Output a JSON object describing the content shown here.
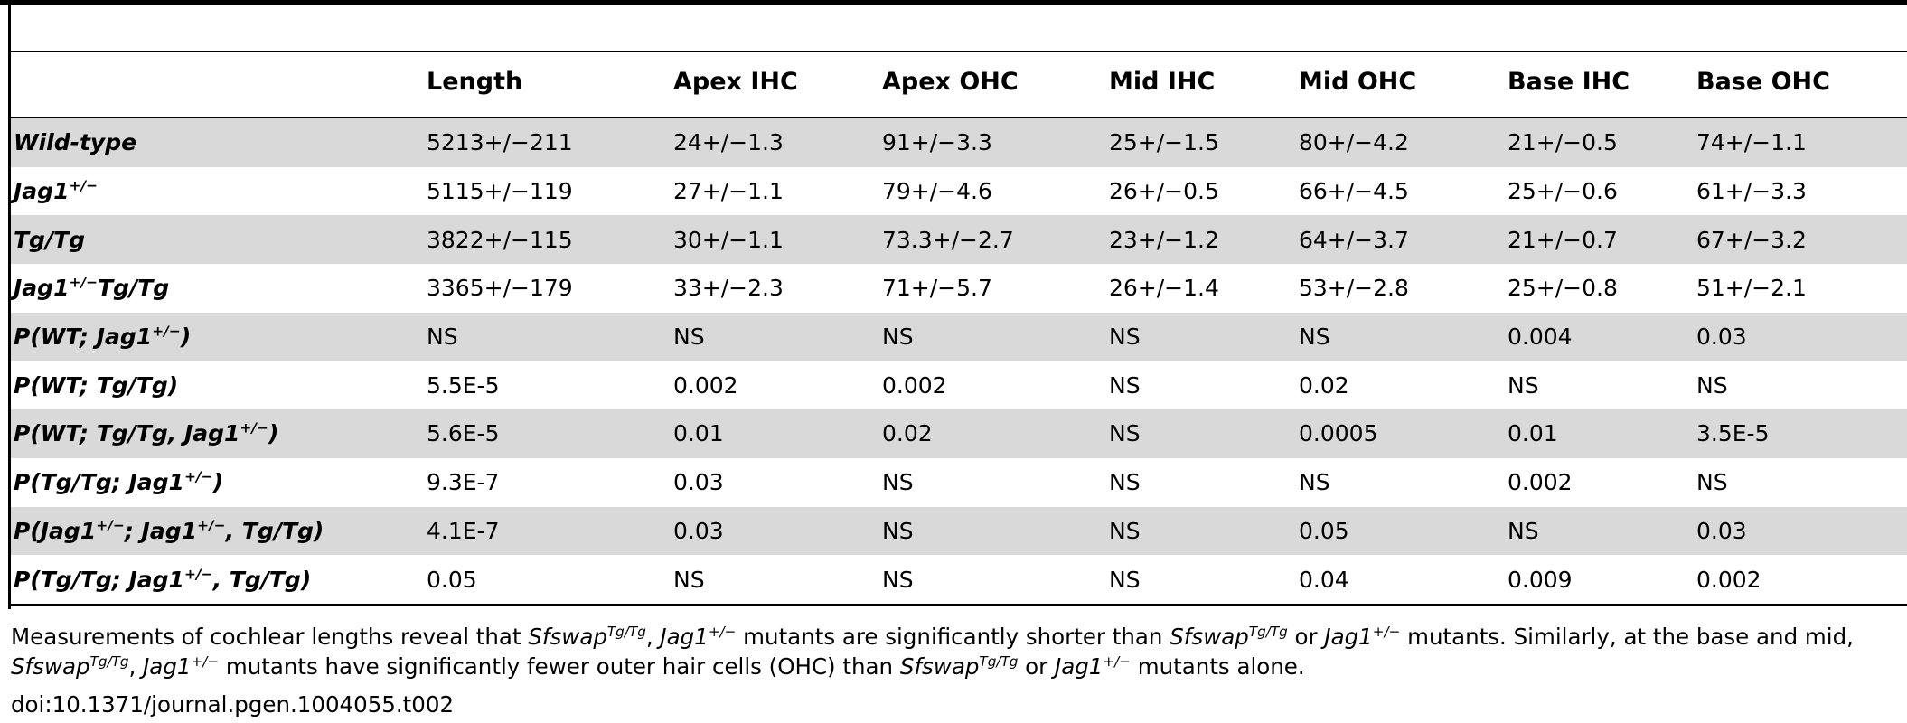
{
  "table": {
    "columns": [
      "",
      "Length",
      "Apex IHC",
      "Apex OHC",
      "Mid IHC",
      "Mid OHC",
      "Base IHC",
      "Base OHC"
    ],
    "rows": [
      {
        "label_parts": [
          "Wild-type",
          "",
          ""
        ],
        "values": [
          "5213+/−211",
          "24+/−1.3",
          "91+/−3.3",
          "25+/−1.5",
          "80+/−4.2",
          "21+/−0.5",
          "74+/−1.1"
        ]
      },
      {
        "label_parts": [
          "Jag1",
          "+/−",
          ""
        ],
        "values": [
          "5115+/−119",
          "27+/−1.1",
          "79+/−4.6",
          "26+/−0.5",
          "66+/−4.5",
          "25+/−0.6",
          "61+/−3.3"
        ]
      },
      {
        "label_parts": [
          "Tg/Tg",
          "",
          ""
        ],
        "values": [
          "3822+/−115",
          "30+/−1.1",
          "73.3+/−2.7",
          "23+/−1.2",
          "64+/−3.7",
          "21+/−0.7",
          "67+/−3.2"
        ]
      },
      {
        "label_parts": [
          "Jag1",
          "+/−",
          "Tg/Tg"
        ],
        "values": [
          "3365+/−179",
          "33+/−2.3",
          "71+/−5.7",
          "26+/−1.4",
          "53+/−2.8",
          "25+/−0.8",
          "51+/−2.1"
        ]
      },
      {
        "label_parts": [
          "P(WT; Jag1",
          "+/−",
          ")"
        ],
        "values": [
          "NS",
          "NS",
          "NS",
          "NS",
          "NS",
          "0.004",
          "0.03"
        ]
      },
      {
        "label_parts": [
          "P(WT; Tg/Tg)",
          "",
          ""
        ],
        "values": [
          "5.5E-5",
          "0.002",
          "0.002",
          "NS",
          "0.02",
          "NS",
          "NS"
        ]
      },
      {
        "label_parts": [
          "P(WT; Tg/Tg, Jag1",
          "+/−",
          ")"
        ],
        "values": [
          "5.6E-5",
          "0.01",
          "0.02",
          "NS",
          "0.0005",
          "0.01",
          "3.5E-5"
        ]
      },
      {
        "label_parts": [
          "P(Tg/Tg; Jag1",
          "+/−",
          ")"
        ],
        "values": [
          "9.3E-7",
          "0.03",
          "NS",
          "NS",
          "NS",
          "0.002",
          "NS"
        ]
      },
      {
        "label_parts": [
          "P(Jag1",
          "+/−",
          "; Jag1",
          "+/−",
          ", Tg/Tg)"
        ],
        "values": [
          "4.1E-7",
          "0.03",
          "NS",
          "NS",
          "0.05",
          "NS",
          "0.03"
        ]
      },
      {
        "label_parts": [
          "P(Tg/Tg; Jag1",
          "+/−",
          ", Tg/Tg)"
        ],
        "values": [
          "0.05",
          "NS",
          "NS",
          "NS",
          "0.04",
          "0.009",
          "0.002"
        ]
      }
    ]
  },
  "footnote": {
    "p1": "Measurements of cochlear lengths reveal that ",
    "g1": "Sfswap",
    "s1": "Tg/Tg",
    "p2": ", ",
    "g2": "Jag1",
    "s2": "+/−",
    "p3": " mutants are significantly shorter than ",
    "g3": "Sfswap",
    "s3": "Tg/Tg",
    "p4": " or ",
    "g4": "Jag1",
    "s4": "+/−",
    "p5": " mutants. Similarly, at the base and mid, ",
    "g5": "Sfswap",
    "s5": "Tg/Tg",
    "p6": ", ",
    "g6": "Jag1",
    "s6": "+/−",
    "p7": " mutants have significantly fewer outer hair cells (OHC) than ",
    "g7": "Sfswap",
    "s7": "Tg/Tg",
    "p8": " or ",
    "g8": "Jag1",
    "s8": "+/−",
    "p9": " mutants alone.",
    "doi": "doi:10.1371/journal.pgen.1004055.t002"
  }
}
